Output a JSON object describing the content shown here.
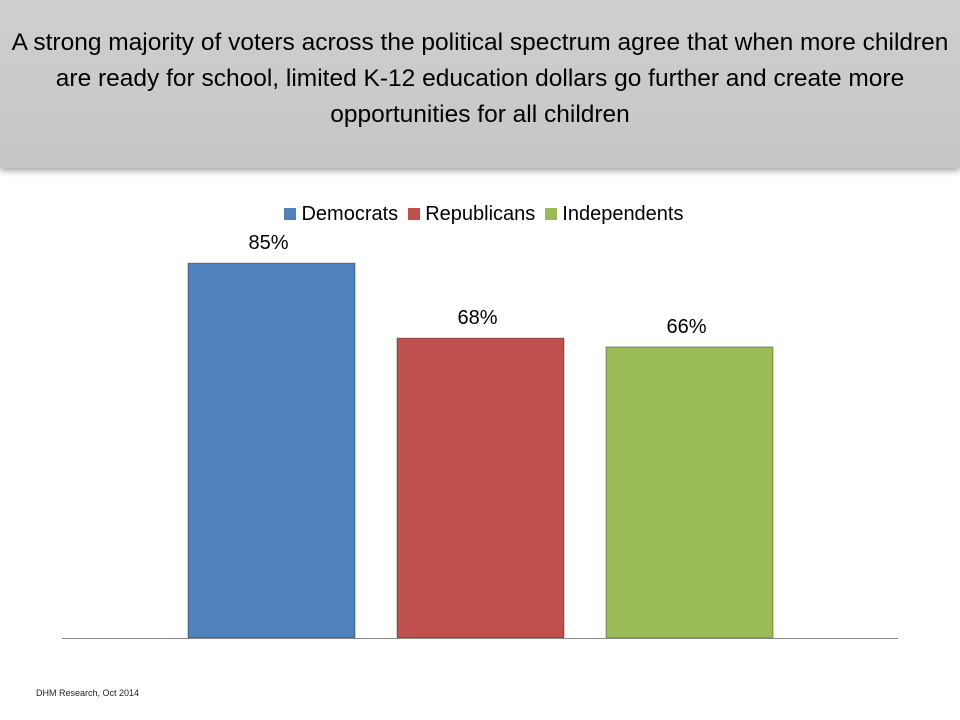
{
  "title": "A strong majority of voters across the political spectrum agree that when more children are ready for school, limited K-12 education dollars go further and create more opportunities for all children",
  "footer": "DHM Research, Oct 2014",
  "colors": {
    "democrats": "#4F81BD",
    "republicans": "#C0504D",
    "independents": "#9BBB59",
    "banner": "#C8C8C8"
  },
  "chart_data": {
    "type": "bar",
    "categories": [
      ""
    ],
    "series": [
      {
        "name": "Democrats",
        "values": [
          85
        ],
        "label": "85%",
        "color": "#4F81BD"
      },
      {
        "name": "Republicans",
        "values": [
          68
        ],
        "label": "68%",
        "color": "#C0504D"
      },
      {
        "name": "Independents",
        "values": [
          66
        ],
        "label": "66%",
        "color": "#9BBB59"
      }
    ],
    "unit": "%",
    "ylim": [
      0,
      100
    ],
    "legend_position": "top",
    "grid": false
  }
}
